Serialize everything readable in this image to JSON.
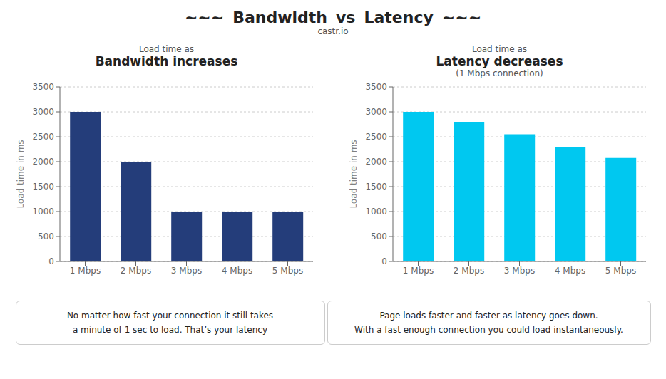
{
  "chart_data": [
    {
      "type": "bar",
      "subtitle": "Load time as",
      "title": "Bandwidth increases",
      "categories": [
        "1 Mbps",
        "2 Mbps",
        "3 Mbps",
        "4 Mbps",
        "5 Mbps"
      ],
      "values": [
        3000,
        2000,
        1000,
        1000,
        1000
      ],
      "color": "#243d7a",
      "ylabel": "Load time in ms",
      "ylim": [
        0,
        3500
      ],
      "yticks": [
        0,
        500,
        1000,
        1500,
        2000,
        2500,
        3000,
        3500
      ],
      "grid": true,
      "annotations": [
        "∼∼∼",
        "Bandwidth",
        "vs",
        "Latency",
        "∼∼∼",
        "castr.io",
        "No matter how fast your connection it still takes\na minute of 1 sec to load. That’s your latency"
      ]
    },
    {
      "type": "bar",
      "subtitle": "Load time as",
      "title": "Latency decreases",
      "categories": [
        "1 Mbps",
        "2 Mbps",
        "3 Mbps",
        "4 Mbps",
        "5 Mbps"
      ],
      "values": [
        3000,
        2800,
        2550,
        2300,
        2075
      ],
      "color": "#00c8f0",
      "ylabel": "Load time in ms",
      "ylim": [
        0,
        3500
      ],
      "yticks": [
        0,
        500,
        1000,
        1500,
        2000,
        2500,
        3000,
        3500
      ],
      "grid": true,
      "annotations": [
        "(1 Mbps connection)",
        "Page loads faster and faster as latency goes down.\nWith a fast enough connection you could load instantaneously."
      ]
    }
  ]
}
